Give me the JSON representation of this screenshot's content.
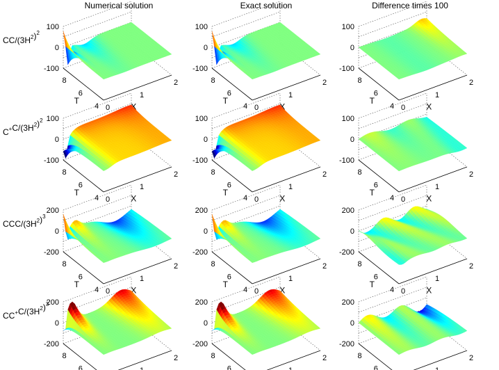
{
  "chart_data": {
    "type": "surface3d",
    "columns": [
      "Numerical solution",
      "Exact solution",
      "Difference times 100"
    ],
    "rows": [
      {
        "label_main": "CC/(3H",
        "label_sup1": "2",
        "label_mid": ")",
        "label_sup2": "2",
        "zticks": [
          -100,
          0,
          100
        ],
        "zlim": [
          -100,
          100
        ],
        "kind": "cc"
      },
      {
        "label_main": "C",
        "label_sup1": "+",
        "label_mid": "C/(3H",
        "label_sup2": "2",
        "label_end": ")",
        "label_sup3": "2",
        "zticks": [
          -100,
          0,
          100
        ],
        "zlim": [
          -100,
          100
        ],
        "kind": "cpc"
      },
      {
        "label_main": "CCC/(3H",
        "label_sup1": "2",
        "label_mid": ")",
        "label_sup2": "3",
        "zticks": [
          -200,
          0,
          200
        ],
        "zlim": [
          -200,
          200
        ],
        "kind": "ccc"
      },
      {
        "label_main": "CC",
        "label_sup1": "+",
        "label_mid": "C/(3H",
        "label_sup2": "2",
        "label_end": ")",
        "label_sup3": "3",
        "zticks": [
          -200,
          0,
          200
        ],
        "zlim": [
          -200,
          200
        ],
        "kind": "ccpc"
      }
    ],
    "t_axis": {
      "label": "T",
      "ticks": [
        8,
        6,
        4
      ],
      "range": [
        4,
        9
      ]
    },
    "x_axis": {
      "label": "X",
      "ticks": [
        0,
        1,
        2
      ],
      "range": [
        0,
        2
      ]
    },
    "colormap": "jet"
  }
}
